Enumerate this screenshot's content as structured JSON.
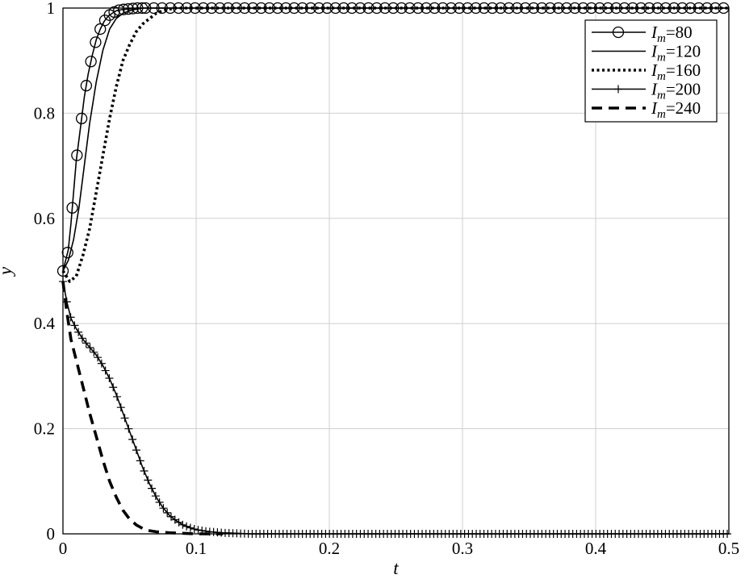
{
  "chart_data": {
    "type": "line",
    "xlabel": "t",
    "ylabel": "y",
    "xlim": [
      0,
      0.5
    ],
    "ylim": [
      0,
      1
    ],
    "xticks": [
      "0",
      "0.1",
      "0.2",
      "0.3",
      "0.4",
      "0.5"
    ],
    "yticks": [
      "0",
      "0.2",
      "0.4",
      "0.6",
      "0.8",
      "1"
    ],
    "grid": true,
    "legend_position": "top-right",
    "series": [
      {
        "name_var": "I",
        "name_sub": "m",
        "name_value": "=80",
        "style": "solid-circle",
        "x": [
          0,
          0.002,
          0.004,
          0.006,
          0.008,
          0.01,
          0.013,
          0.016,
          0.019,
          0.022,
          0.025,
          0.028,
          0.031,
          0.034,
          0.037,
          0.04,
          0.044,
          0.048,
          0.052,
          0.056,
          0.06,
          0.065,
          0.07,
          0.075,
          0.08,
          0.085,
          0.09,
          0.1,
          0.12,
          0.15,
          0.2,
          0.3,
          0.4,
          0.5
        ],
        "y": [
          0.5,
          0.52,
          0.54,
          0.59,
          0.65,
          0.71,
          0.77,
          0.83,
          0.875,
          0.91,
          0.94,
          0.96,
          0.975,
          0.985,
          0.99,
          0.995,
          0.997,
          0.998,
          0.999,
          1,
          1,
          1,
          1,
          1,
          1,
          1,
          1,
          1,
          1,
          1,
          1,
          1,
          1,
          1
        ]
      },
      {
        "name_var": "I",
        "name_sub": "m",
        "name_value": "=120",
        "style": "solid",
        "x": [
          0,
          0.004,
          0.008,
          0.012,
          0.016,
          0.02,
          0.025,
          0.03,
          0.035,
          0.04,
          0.045,
          0.05,
          0.055,
          0.06,
          0.07,
          0.08,
          0.1,
          0.2,
          0.3,
          0.4,
          0.5
        ],
        "y": [
          0.5,
          0.52,
          0.56,
          0.62,
          0.7,
          0.78,
          0.86,
          0.92,
          0.96,
          0.98,
          0.99,
          0.995,
          0.998,
          1,
          1,
          1,
          1,
          1,
          1,
          1,
          1
        ],
        "xy_note": ""
      },
      {
        "name_var": "I",
        "name_sub": "m",
        "name_value": "=160",
        "style": "dotted",
        "x": [
          0,
          0.005,
          0.01,
          0.015,
          0.02,
          0.025,
          0.03,
          0.035,
          0.04,
          0.045,
          0.05,
          0.055,
          0.06,
          0.065,
          0.07,
          0.075,
          0.08,
          0.085,
          0.09,
          0.1,
          0.2,
          0.3,
          0.4,
          0.5
        ],
        "y": [
          0.5,
          0.48,
          0.49,
          0.53,
          0.58,
          0.65,
          0.72,
          0.79,
          0.85,
          0.9,
          0.93,
          0.955,
          0.97,
          0.98,
          0.99,
          0.995,
          0.998,
          1,
          1,
          1,
          1,
          1,
          1,
          1
        ]
      },
      {
        "name_var": "I",
        "name_sub": "m",
        "name_value": "=200",
        "style": "solid-plus",
        "x": [
          0,
          0.003,
          0.006,
          0.01,
          0.015,
          0.02,
          0.025,
          0.03,
          0.035,
          0.04,
          0.045,
          0.05,
          0.055,
          0.06,
          0.065,
          0.07,
          0.075,
          0.08,
          0.085,
          0.09,
          0.095,
          0.1,
          0.11,
          0.12,
          0.13,
          0.14,
          0.15,
          0.2,
          0.3,
          0.4,
          0.5
        ],
        "y": [
          0.48,
          0.44,
          0.41,
          0.39,
          0.37,
          0.355,
          0.34,
          0.32,
          0.295,
          0.265,
          0.23,
          0.195,
          0.16,
          0.125,
          0.095,
          0.07,
          0.05,
          0.035,
          0.025,
          0.017,
          0.012,
          0.008,
          0.004,
          0.002,
          0.001,
          0,
          0,
          0,
          0,
          0,
          0
        ]
      },
      {
        "name_var": "I",
        "name_sub": "m",
        "name_value": "=240",
        "style": "dashed",
        "x": [
          0,
          0.003,
          0.006,
          0.01,
          0.015,
          0.02,
          0.025,
          0.03,
          0.035,
          0.04,
          0.045,
          0.05,
          0.055,
          0.06,
          0.065,
          0.07,
          0.08,
          0.09,
          0.1,
          0.11,
          0.12
        ],
        "y": [
          0.48,
          0.42,
          0.37,
          0.33,
          0.28,
          0.23,
          0.185,
          0.14,
          0.1,
          0.07,
          0.045,
          0.028,
          0.017,
          0.01,
          0.006,
          0.004,
          0.002,
          0.001,
          0,
          0,
          0
        ]
      }
    ]
  }
}
